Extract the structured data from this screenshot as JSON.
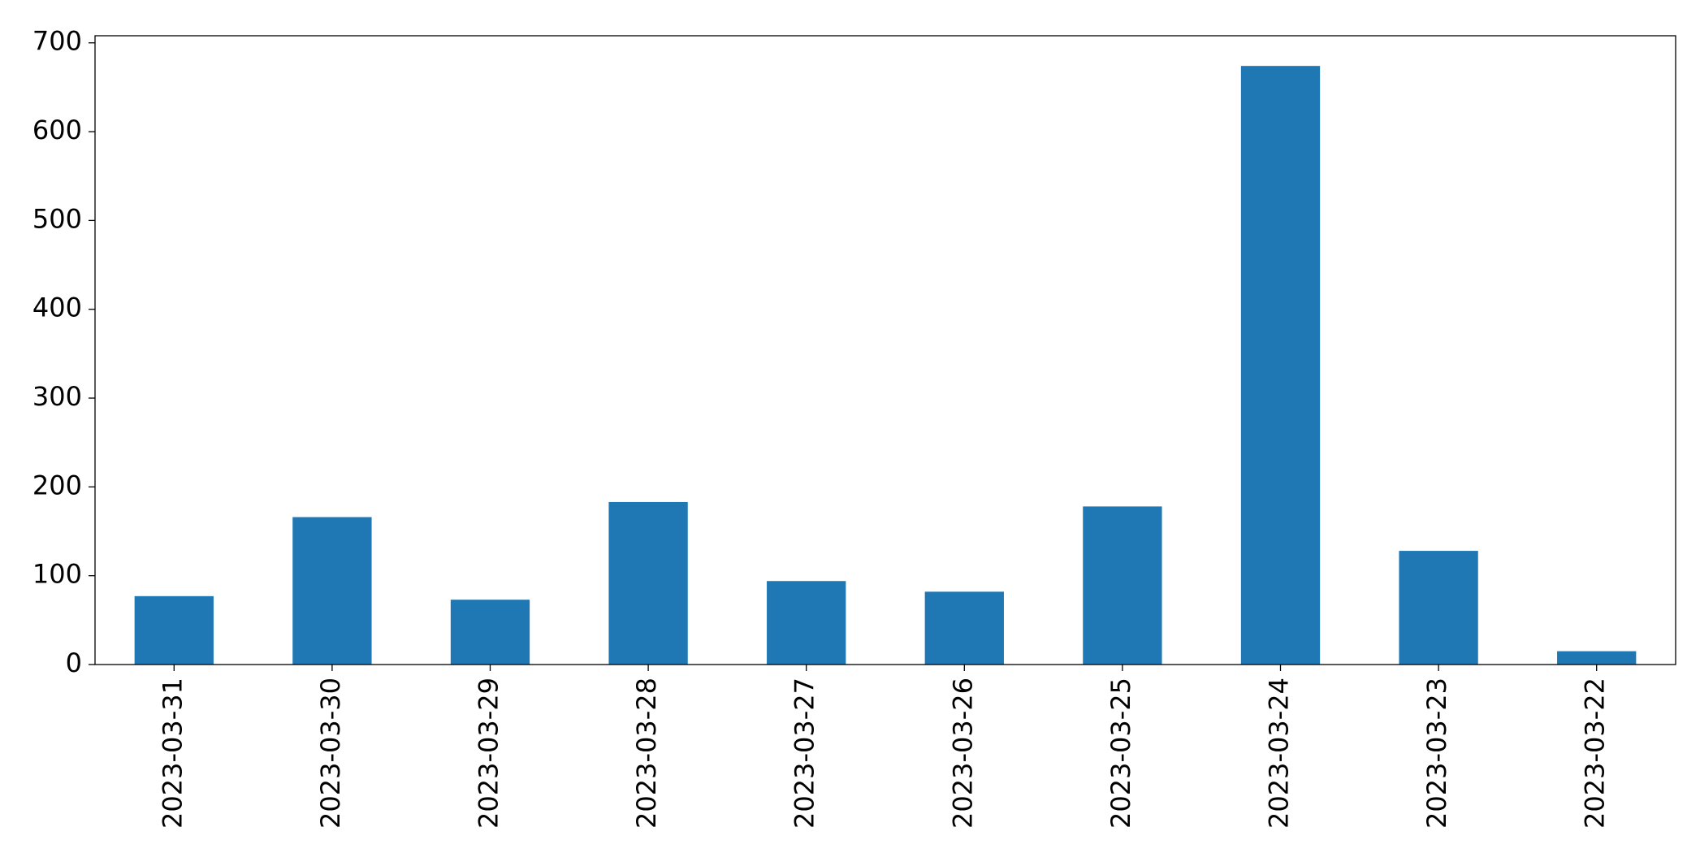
{
  "chart_data": {
    "type": "bar",
    "categories": [
      "2023-03-31",
      "2023-03-30",
      "2023-03-29",
      "2023-03-28",
      "2023-03-27",
      "2023-03-26",
      "2023-03-25",
      "2023-03-24",
      "2023-03-23",
      "2023-03-22"
    ],
    "values": [
      77,
      166,
      73,
      183,
      94,
      82,
      178,
      674,
      128,
      15
    ],
    "color": "#1f77b4",
    "ylim": [
      0,
      708
    ],
    "yticks": [
      0,
      100,
      200,
      300,
      400,
      500,
      600,
      700
    ],
    "grid": false
  }
}
